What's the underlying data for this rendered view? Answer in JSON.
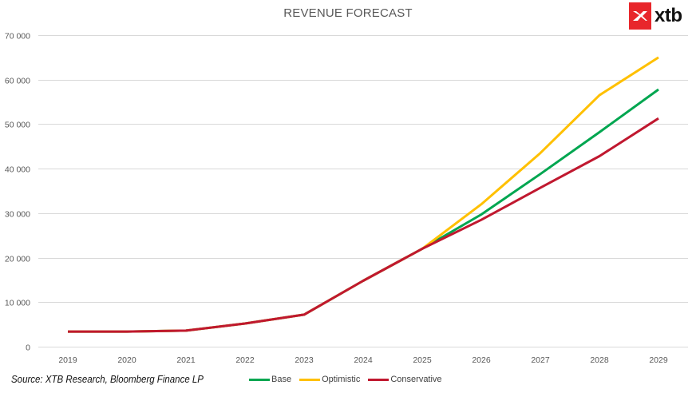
{
  "chart_data": {
    "type": "line",
    "title": "REVENUE FORECAST",
    "xlabel": "",
    "ylabel": "",
    "x": [
      "2019",
      "2020",
      "2021",
      "2022",
      "2023",
      "2024",
      "2025",
      "2026",
      "2027",
      "2028",
      "2029"
    ],
    "ylim": [
      0,
      70000
    ],
    "yticks": [
      0,
      10000,
      20000,
      30000,
      40000,
      50000,
      60000,
      70000
    ],
    "ytick_labels": [
      "0",
      "10 000",
      "20 000",
      "30 000",
      "40 000",
      "50 000",
      "60 000",
      "70 000"
    ],
    "grid": true,
    "legend_position": "bottom",
    "series": [
      {
        "name": "Base",
        "color": "#00a650",
        "values": [
          3400,
          3400,
          3600,
          5200,
          7200,
          14800,
          22000,
          29700,
          38800,
          48200,
          57800
        ]
      },
      {
        "name": "Optimistic",
        "color": "#ffc000",
        "values": [
          3400,
          3400,
          3600,
          5200,
          7200,
          14800,
          22000,
          32000,
          43500,
          56500,
          65000
        ]
      },
      {
        "name": "Conservative",
        "color": "#c0182f",
        "values": [
          3400,
          3400,
          3600,
          5200,
          7200,
          14800,
          22000,
          28500,
          35700,
          42800,
          51300
        ]
      }
    ]
  },
  "source": "Source: XTB Research, Bloomberg Finance LP",
  "logo": {
    "text": "xtb",
    "icon": "xtb-x-icon",
    "color": "#e8262b"
  }
}
